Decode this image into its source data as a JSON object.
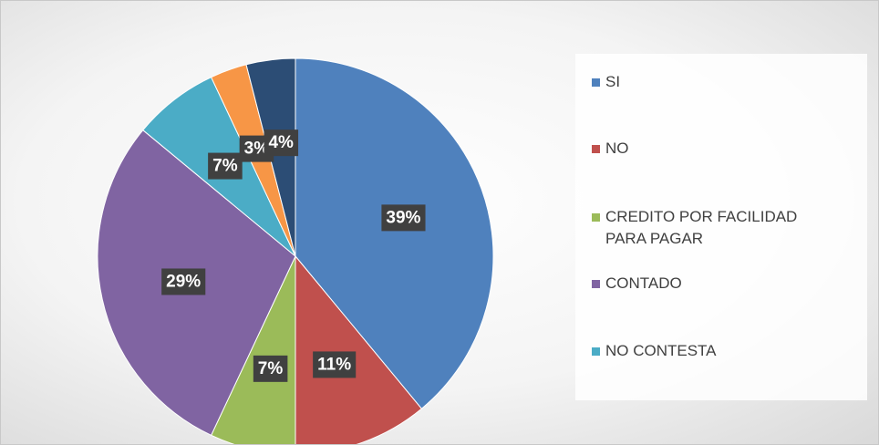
{
  "chart_data": {
    "type": "pie",
    "categories": [
      "SI",
      "NO",
      "CREDITO POR FACILIDAD PARA PAGAR",
      "CONTADO",
      "NO CONTESTA",
      null,
      null
    ],
    "values": [
      39,
      11,
      7,
      29,
      7,
      3,
      4
    ],
    "value_labels": [
      "39%",
      "11%",
      "7%",
      "29%",
      "7%",
      "3%",
      "4%"
    ],
    "colors": [
      "#4f81bd",
      "#c0504d",
      "#9bbb59",
      "#8064a2",
      "#4bacc6",
      "#f79646",
      "#2c4d75"
    ]
  }
}
